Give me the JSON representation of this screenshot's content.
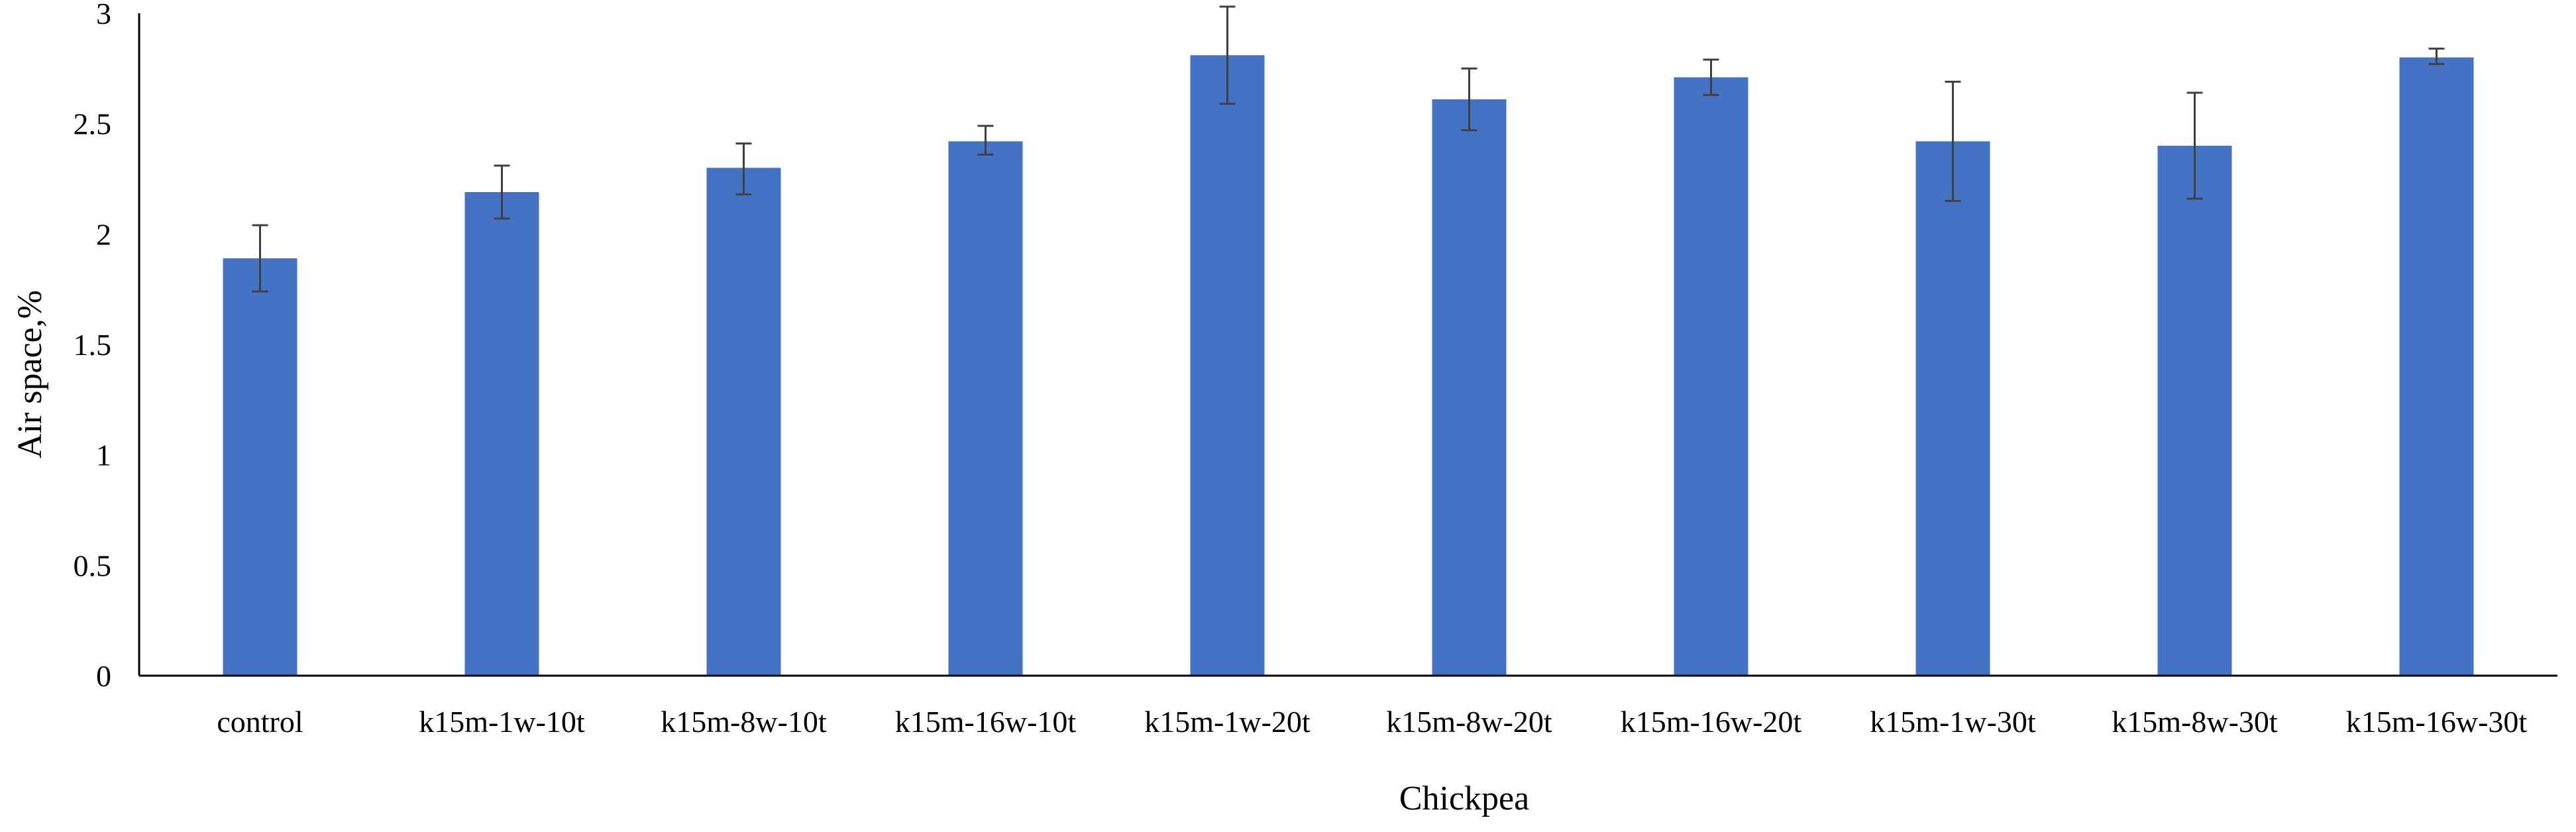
{
  "chart_data": {
    "type": "bar",
    "title": "",
    "xlabel": "Chickpea",
    "ylabel": "Air space,%",
    "categories": [
      "control",
      "k15m-1w-10t",
      "k15m-8w-10t",
      "k15m-16w-10t",
      "k15m-1w-20t",
      "k15m-8w-20t",
      "k15m-16w-20t",
      "k15m-1w-30t",
      "k15m-8w-30t",
      "k15m-16w-30t"
    ],
    "values": [
      1.89,
      2.19,
      2.3,
      2.42,
      2.81,
      2.61,
      2.71,
      2.42,
      2.4,
      2.8
    ],
    "error_low": [
      1.74,
      2.07,
      2.18,
      2.36,
      2.59,
      2.47,
      2.63,
      2.15,
      2.16,
      2.77
    ],
    "error_high": [
      2.04,
      2.31,
      2.41,
      2.49,
      3.03,
      2.75,
      2.79,
      2.69,
      2.64,
      2.84
    ],
    "ylim": [
      0,
      3
    ],
    "yticks": [
      "0",
      "0.5",
      "1",
      "1.5",
      "2",
      "2.5",
      "3"
    ],
    "grid": false,
    "legend": "none",
    "colors": {
      "bar": "#4472C4",
      "error_bar": "#404040",
      "axis": "#000000"
    }
  }
}
